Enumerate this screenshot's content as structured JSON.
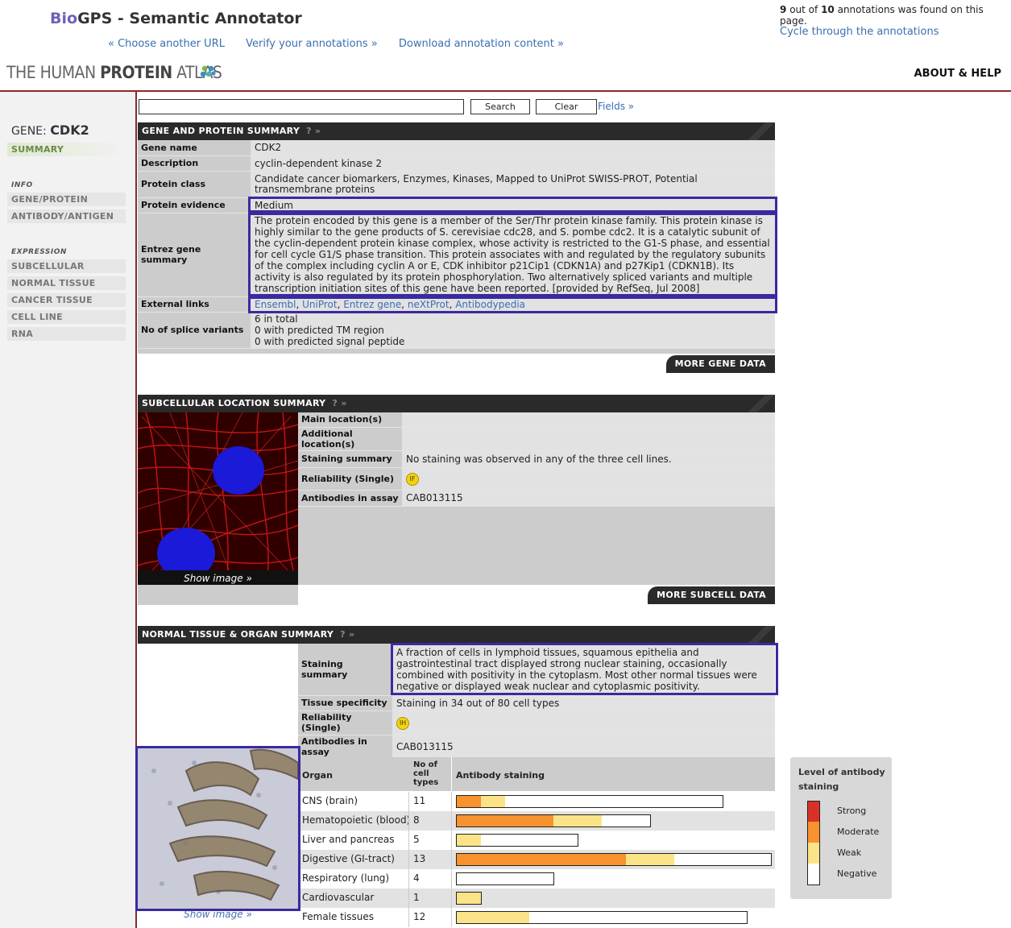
{
  "annotator": {
    "brand_bio": "Bio",
    "brand_rest": "GPS - Semantic Annotator",
    "links": [
      "« Choose another URL",
      "Verify your annotations »",
      "Download annotation content »"
    ],
    "found_count": "9",
    "found_total": "10",
    "found_text_1": "out of",
    "found_text_2": "annotations was found on this page.",
    "cycle_link": "Cycle through the annotations"
  },
  "header": {
    "logo_light": "THE HUMAN ",
    "logo_bold": "PROTEIN",
    "logo_tail": " ATLAS",
    "about": "ABOUT & HELP"
  },
  "sidebar": {
    "gene_prefix": "GENE:",
    "gene_name": "CDK2",
    "summary": "SUMMARY",
    "info_heading": "INFO",
    "info_items": [
      "GENE/PROTEIN",
      "ANTIBODY/ANTIGEN"
    ],
    "expression_heading": "EXPRESSION",
    "expression_items": [
      "SUBCELLULAR LOCATION",
      "NORMAL TISSUE",
      "CANCER TISSUE",
      "CELL LINE",
      "RNA"
    ]
  },
  "search": {
    "value": "",
    "search_label": "Search",
    "clear_label": "Clear",
    "fields_label": "Fields »"
  },
  "gene_panel": {
    "title": "GENE AND PROTEIN SUMMARY",
    "help": "? »",
    "rows": [
      {
        "k": "Gene name",
        "v": "CDK2"
      },
      {
        "k": "Description",
        "v": "cyclin-dependent kinase 2"
      },
      {
        "k": "Protein class",
        "v": "Candidate cancer biomarkers, Enzymes, Kinases, Mapped to UniProt SWISS-PROT, Potential transmembrane proteins"
      },
      {
        "k": "Protein evidence",
        "v": "Medium"
      },
      {
        "k": "Entrez gene summary",
        "v": "The protein encoded by this gene is a member of the Ser/Thr protein kinase family. This protein kinase is highly similar to the gene products of S. cerevisiae cdc28, and S. pombe cdc2. It is a catalytic subunit of the cyclin-dependent protein kinase complex, whose activity is restricted to the G1-S phase, and essential for cell cycle G1/S phase transition. This protein associates with and regulated by the regulatory subunits of the complex including cyclin A or E, CDK inhibitor p21Cip1 (CDKN1A) and p27Kip1 (CDKN1B). Its activity is also regulated by its protein phosphorylation. Two alternatively spliced variants and multiple transcription initiation sites of this gene have been reported. [provided by RefSeq, Jul 2008]"
      },
      {
        "k": "External links",
        "links": [
          "Ensembl",
          "UniProt",
          "Entrez gene",
          "neXtProt",
          "Antibodypedia"
        ]
      },
      {
        "k": "No of splice variants",
        "lines": [
          "6 in total",
          "0 with predicted TM region",
          "0 with predicted signal peptide"
        ]
      }
    ],
    "more": "MORE GENE DATA"
  },
  "subcell_panel": {
    "title": "SUBCELLULAR LOCATION SUMMARY",
    "help": "? »",
    "show_image": "Show image »",
    "rows": [
      {
        "k": "Main location(s)",
        "v": ""
      },
      {
        "k": "Additional location(s)",
        "v": ""
      },
      {
        "k": "Staining summary",
        "v": "No staining was observed in any of the three cell lines."
      },
      {
        "k": "Reliability (Single)",
        "badge": "IF"
      },
      {
        "k": "Antibodies in assay",
        "v": "CAB013115"
      }
    ],
    "more": "MORE SUBCELL DATA"
  },
  "tissue_panel": {
    "title": "NORMAL TISSUE & ORGAN SUMMARY",
    "help": "? »",
    "show_image": "Show image »",
    "rows": [
      {
        "k": "Staining summary",
        "v": "A fraction of cells in lymphoid tissues, squamous epithelia and gastrointestinal tract displayed strong nuclear staining, occasionally combined with positivity in the cytoplasm. Most other normal tissues were negative or displayed weak nuclear and cytoplasmic positivity."
      },
      {
        "k": "Tissue specificity",
        "v": "Staining in 34 out of 80 cell types"
      },
      {
        "k": "Reliability (Single)",
        "badge": "IH"
      },
      {
        "k": "Antibodies in assay",
        "v": "CAB013115"
      }
    ],
    "organ_header": {
      "organ": "Organ",
      "count": "No of cell types",
      "staining": "Antibody staining"
    },
    "organs": [
      {
        "name": "CNS (brain)",
        "count": "11",
        "moderate": 1,
        "weak": 1,
        "negative": 9
      },
      {
        "name": "Hematopoietic (blood)",
        "count": "8",
        "moderate": 4,
        "weak": 2,
        "negative": 2
      },
      {
        "name": "Liver and pancreas",
        "count": "5",
        "moderate": 0,
        "weak": 1,
        "negative": 4
      },
      {
        "name": "Digestive (GI-tract)",
        "count": "13",
        "moderate": 7,
        "weak": 2,
        "negative": 4
      },
      {
        "name": "Respiratory (lung)",
        "count": "4",
        "moderate": 0,
        "weak": 0,
        "negative": 4
      },
      {
        "name": "Cardiovascular",
        "count": "1",
        "moderate": 0,
        "weak": 1,
        "negative": 0
      },
      {
        "name": "Female tissues",
        "count": "12",
        "moderate": 0,
        "weak": 3,
        "negative": 9
      }
    ]
  },
  "legend": {
    "title_1": "Level of antibody",
    "title_2": "staining",
    "levels": [
      {
        "label": "Strong",
        "color": "#d9302a"
      },
      {
        "label": "Moderate",
        "color": "#f7922e"
      },
      {
        "label": "Weak",
        "color": "#fbe487"
      },
      {
        "label": "Negative",
        "color": "#ffffff"
      }
    ]
  }
}
